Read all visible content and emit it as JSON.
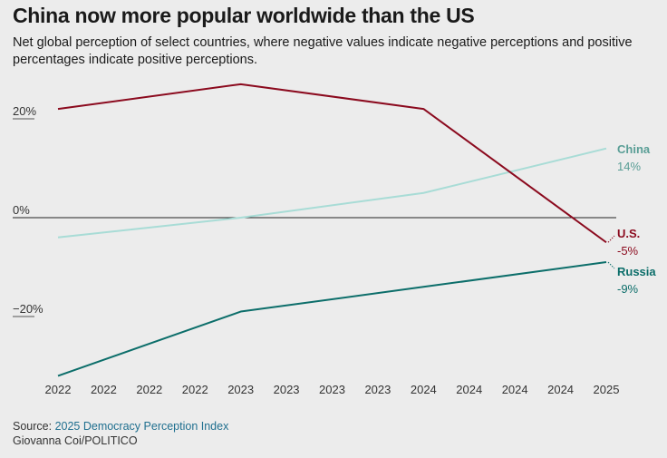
{
  "header": {
    "title": "China now more popular worldwide than the US",
    "subtitle": "Net global perception of select countries, where negative values indicate negative perceptions and positive percentages indicate positive perceptions."
  },
  "footer": {
    "source_prefix": "Source: ",
    "source_link": "2025 Democracy Perception Index",
    "credit": "Giovanna Coi/POLITICO"
  },
  "chart_data": {
    "type": "line",
    "x_tick_labels": [
      "2022",
      "2022",
      "2022",
      "2022",
      "2023",
      "2023",
      "2023",
      "2023",
      "2024",
      "2024",
      "2024",
      "2024",
      "2025"
    ],
    "y_tick_labels": [
      {
        "value": 20,
        "label": "20%"
      },
      {
        "value": 0,
        "label": "0%"
      },
      {
        "value": -20,
        "label": "−20%"
      }
    ],
    "ylim": [
      -35,
      30
    ],
    "grid": false,
    "series": [
      {
        "name": "China",
        "end_label": "14%",
        "color": "#a8dcd6",
        "x": [
          2022,
          2023,
          2024,
          2025
        ],
        "values": [
          -4,
          0,
          5,
          14
        ]
      },
      {
        "name": "U.S.",
        "end_label": "-5%",
        "color": "#8b0a1e",
        "x": [
          2022,
          2023,
          2024,
          2025
        ],
        "values": [
          22,
          27,
          22,
          -5
        ]
      },
      {
        "name": "Russia",
        "end_label": "-9%",
        "color": "#0c6e6a",
        "x": [
          2022,
          2023,
          2024,
          2025
        ],
        "values": [
          -32,
          -19,
          -14,
          -9
        ]
      }
    ]
  }
}
